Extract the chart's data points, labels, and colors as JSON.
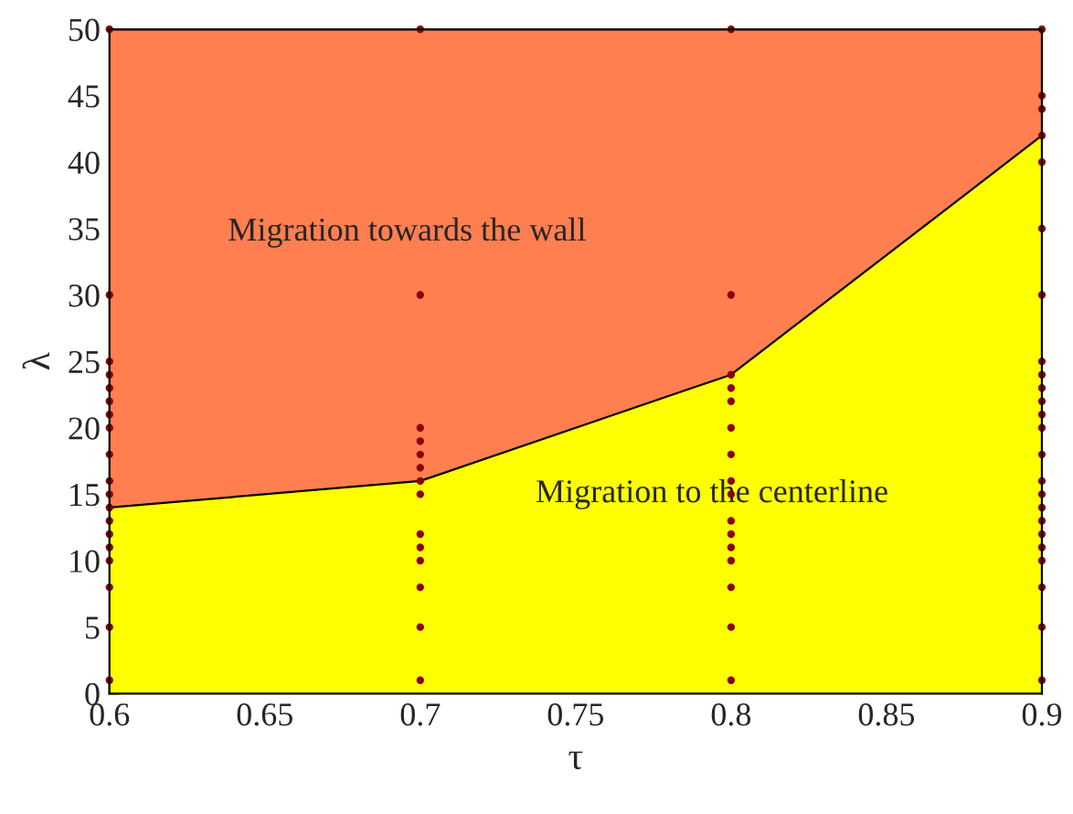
{
  "chart_data": {
    "type": "area",
    "stacked": true,
    "xlabel": "τ",
    "ylabel": "λ",
    "x": [
      0.6,
      0.7,
      0.8,
      0.9
    ],
    "series": [
      {
        "color": "#ffff00",
        "values": [
          14,
          16,
          24,
          42
        ]
      },
      {
        "color": "#ff7f50",
        "values": [
          36,
          34,
          26,
          8
        ]
      },
      {
        "type": "scatter",
        "color": "#8b0000",
        "marker": "circle",
        "x": [
          0.6,
          0.6,
          0.6,
          0.6,
          0.6,
          0.6,
          0.6,
          0.6,
          0.6,
          0.6,
          0.6,
          0.6,
          0.6,
          0.6,
          0.6,
          0.6,
          0.6,
          0.6,
          0.6,
          0.7,
          0.7,
          0.7,
          0.7,
          0.7,
          0.7,
          0.7,
          0.7,
          0.7,
          0.7,
          0.7,
          0.7,
          0.7,
          0.7,
          0.8,
          0.8,
          0.8,
          0.8,
          0.8,
          0.8,
          0.8,
          0.8,
          0.8,
          0.8,
          0.8,
          0.8,
          0.8,
          0.8,
          0.8,
          0.8,
          0.9,
          0.9,
          0.9,
          0.9,
          0.9,
          0.9,
          0.9,
          0.9,
          0.9,
          0.9,
          0.9,
          0.9,
          0.9,
          0.9,
          0.9,
          0.9,
          0.9,
          0.9,
          0.9,
          0.9,
          0.9,
          0.9,
          0.9,
          0.9
        ],
        "values": [
          50,
          30,
          25,
          24,
          23,
          22,
          21,
          20,
          18,
          16,
          15,
          14,
          13,
          12,
          11,
          10,
          8,
          5,
          1,
          50,
          30,
          20,
          19,
          18,
          17,
          16,
          15,
          12,
          11,
          10,
          8,
          5,
          1,
          50,
          30,
          24,
          23,
          22,
          20,
          18,
          16,
          15,
          13,
          12,
          11,
          10,
          8,
          5,
          1,
          50,
          45,
          44,
          42,
          40,
          35,
          30,
          25,
          24,
          23,
          22,
          21,
          20,
          18,
          16,
          15,
          14,
          13,
          12,
          11,
          10,
          8,
          5,
          1
        ]
      }
    ],
    "xlim": [
      0.6,
      0.9
    ],
    "ylim": [
      0,
      50
    ],
    "xticks": [
      0.6,
      0.65,
      0.7,
      0.75,
      0.8,
      0.85,
      0.9
    ],
    "yticks": [
      0,
      5,
      10,
      15,
      20,
      25,
      30,
      35,
      40,
      45,
      50
    ],
    "annotations": [
      "Migration towards the wall",
      "Migration to the centerline"
    ],
    "legend": false
  }
}
